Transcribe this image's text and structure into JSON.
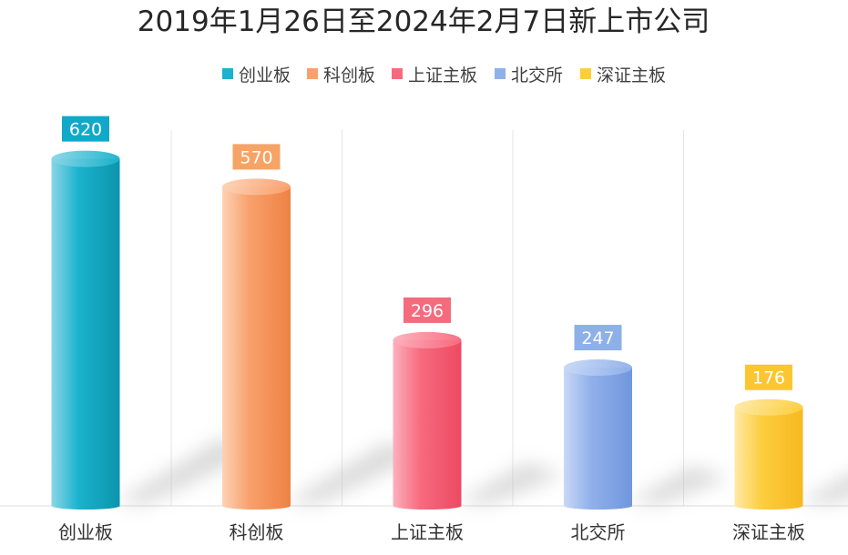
{
  "chart_data": {
    "type": "bar",
    "title": "2019年1月26日至2024年2月7日新上市公司",
    "categories": [
      "创业板",
      "科创板",
      "上证主板",
      "北交所",
      "深证主板"
    ],
    "values": [
      620,
      570,
      296,
      247,
      176
    ],
    "legend": [
      "创业板",
      "科创板",
      "上证主板",
      "北交所",
      "深证主板"
    ],
    "legend_position": "top",
    "xlabel": "",
    "ylabel": "",
    "ylim": [
      0,
      660
    ],
    "grid": false,
    "colors": {
      "base": [
        "#1ab2cc",
        "#f9a06c",
        "#f76a7e",
        "#90b0ea",
        "#fcce3e"
      ],
      "light": [
        "#8ad6e6",
        "#fcd2b4",
        "#fcb0bc",
        "#c8d8f6",
        "#fee9a6"
      ],
      "dark": [
        "#0c94ad",
        "#ee8244",
        "#ec4a62",
        "#7096dc",
        "#f6b820"
      ],
      "label_bg": [
        "#11a9c9",
        "#f6a366",
        "#f46b7e",
        "#8db0e8",
        "#fbc62f"
      ]
    }
  }
}
